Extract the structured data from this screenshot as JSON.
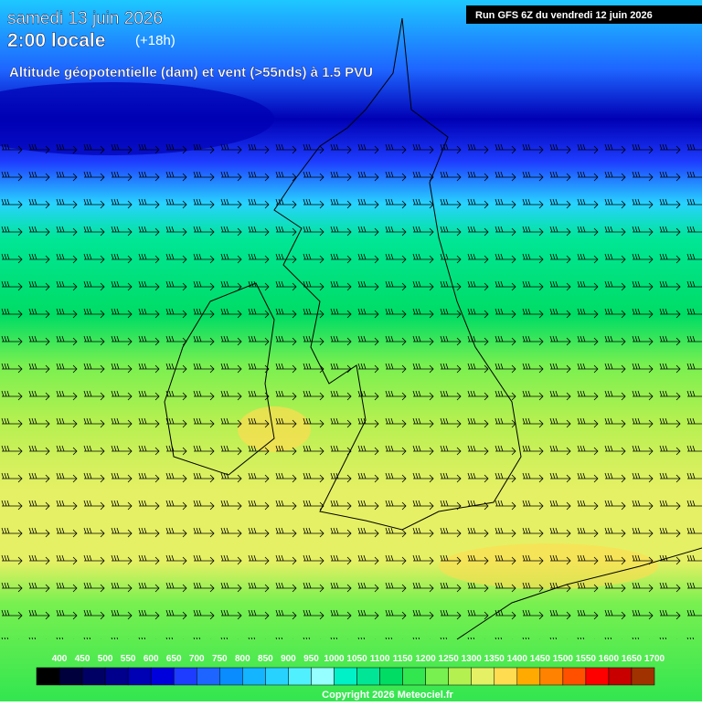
{
  "header": {
    "date": "samedi 13 juin 2026",
    "time": "2:00 locale",
    "lead": "(+18h)",
    "subtitle": "Altitude géopotentielle (dam) et vent (>55nds) à 1.5 PVU",
    "run": "Run GFS 6Z du vendredi 12 juin 2026"
  },
  "legend": {
    "labels": [
      400,
      450,
      500,
      550,
      600,
      650,
      700,
      750,
      800,
      850,
      900,
      950,
      1000,
      1050,
      1100,
      1150,
      1200,
      1250,
      1300,
      1350,
      1400,
      1450,
      1500,
      1550,
      1600,
      1650,
      1700
    ],
    "colors": [
      "#000000",
      "#00003c",
      "#000064",
      "#00008c",
      "#0000b4",
      "#0000dc",
      "#1e3cff",
      "#1e64ff",
      "#0a8cff",
      "#14b4ff",
      "#28d2ff",
      "#50f0ff",
      "#96ffff",
      "#00f0c8",
      "#00e696",
      "#00dc64",
      "#32e650",
      "#78f050",
      "#b4f050",
      "#e6f064",
      "#ffdc50",
      "#ffaa00",
      "#ff8200",
      "#ff5000",
      "#ff0000",
      "#c80000",
      "#a03200",
      "#782800",
      "#501e00",
      "#321400"
    ]
  },
  "footer": {
    "copyright": "Copyright 2026 Meteociel.fr"
  }
}
